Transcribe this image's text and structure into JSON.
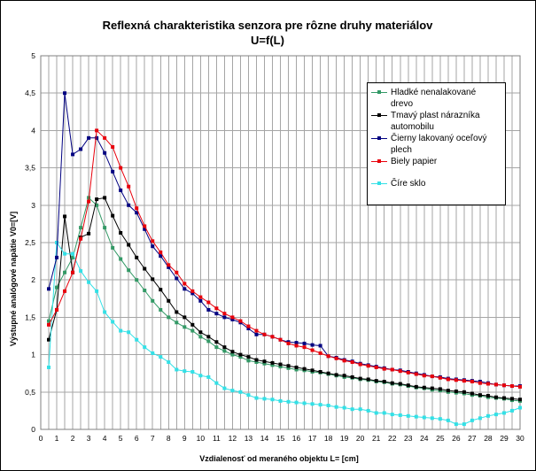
{
  "chart_data": {
    "type": "line",
    "title": "Reflexná charakteristika senzora pre rôzne druhy materiálov",
    "subtitle": "U=f(L)",
    "xlabel": "Vzdialenosť od meraného objektu L= [cm]",
    "ylabel": "Výstupné analógové napätie V0=[V]",
    "xlim": [
      0,
      30
    ],
    "ylim": [
      0,
      5
    ],
    "xticks": [
      0,
      1,
      2,
      3,
      4,
      5,
      6,
      7,
      8,
      9,
      10,
      11,
      12,
      13,
      14,
      15,
      16,
      17,
      18,
      19,
      20,
      21,
      22,
      23,
      24,
      25,
      26,
      27,
      28,
      29,
      30
    ],
    "xtick_labels": [
      "0",
      "1",
      "2",
      "3",
      "4",
      "5",
      "6",
      "7",
      "8",
      "9",
      "10",
      "11",
      "12",
      "13",
      "14",
      "15",
      "16",
      "17",
      "18",
      "19",
      "20",
      "21",
      "22",
      "23",
      "24",
      "25",
      "26",
      "27",
      "28",
      "29",
      "30"
    ],
    "yticks": [
      0,
      0.5,
      1,
      1.5,
      2,
      2.5,
      3,
      3.5,
      4,
      4.5,
      5
    ],
    "ytick_labels": [
      "0",
      "0,5",
      "1",
      "1,5",
      "2",
      "2,5",
      "3",
      "3,5",
      "4",
      "4,5",
      "5"
    ],
    "grid": true,
    "legend_position": "top-right",
    "series": [
      {
        "name": "Hladké nenalakované drevo",
        "legend_lines": [
          "Hladké nenalakované",
          "drevo"
        ],
        "color": "#339966",
        "points": [
          [
            0.5,
            1.45
          ],
          [
            1,
            1.9
          ],
          [
            1.5,
            2.1
          ],
          [
            2,
            2.3
          ],
          [
            2.5,
            2.7
          ],
          [
            3,
            3.1
          ],
          [
            3.5,
            3.0
          ],
          [
            4,
            2.7
          ],
          [
            4.5,
            2.43
          ],
          [
            5,
            2.28
          ],
          [
            5.5,
            2.13
          ],
          [
            6,
            2.0
          ],
          [
            6.5,
            1.86
          ],
          [
            7,
            1.72
          ],
          [
            7.5,
            1.6
          ],
          [
            8,
            1.5
          ],
          [
            8.5,
            1.43
          ],
          [
            9,
            1.37
          ],
          [
            9.5,
            1.32
          ],
          [
            10,
            1.24
          ],
          [
            10.5,
            1.18
          ],
          [
            11,
            1.1
          ],
          [
            11.5,
            1.05
          ],
          [
            12,
            1.0
          ],
          [
            12.5,
            0.97
          ],
          [
            13,
            0.92
          ],
          [
            13.5,
            0.9
          ],
          [
            14,
            0.88
          ],
          [
            14.5,
            0.86
          ],
          [
            15,
            0.84
          ],
          [
            15.5,
            0.82
          ],
          [
            16,
            0.8
          ],
          [
            16.5,
            0.79
          ],
          [
            17,
            0.77
          ],
          [
            17.5,
            0.76
          ],
          [
            18,
            0.74
          ],
          [
            18.5,
            0.72
          ],
          [
            19,
            0.7
          ],
          [
            19.5,
            0.69
          ],
          [
            20,
            0.67
          ],
          [
            20.5,
            0.66
          ],
          [
            21,
            0.64
          ],
          [
            21.5,
            0.63
          ],
          [
            22,
            0.61
          ],
          [
            22.5,
            0.6
          ],
          [
            23,
            0.58
          ],
          [
            23.5,
            0.56
          ],
          [
            24,
            0.55
          ],
          [
            24.5,
            0.53
          ],
          [
            25,
            0.52
          ],
          [
            25.5,
            0.5
          ],
          [
            26,
            0.49
          ],
          [
            26.5,
            0.48
          ],
          [
            27,
            0.46
          ],
          [
            27.5,
            0.45
          ],
          [
            28,
            0.43
          ],
          [
            28.5,
            0.42
          ],
          [
            29,
            0.41
          ],
          [
            29.5,
            0.39
          ],
          [
            30,
            0.38
          ]
        ]
      },
      {
        "name": "Tmavý plast nárazníka automobilu",
        "legend_lines": [
          "Tmavý plast nárazníka",
          "automobilu"
        ],
        "color": "#000000",
        "points": [
          [
            0.5,
            1.2
          ],
          [
            1,
            1.6
          ],
          [
            1.5,
            2.85
          ],
          [
            2,
            2.1
          ],
          [
            2.5,
            2.57
          ],
          [
            3,
            2.62
          ],
          [
            3.5,
            3.08
          ],
          [
            4,
            3.1
          ],
          [
            4.5,
            2.86
          ],
          [
            5,
            2.63
          ],
          [
            5.5,
            2.47
          ],
          [
            6,
            2.3
          ],
          [
            6.5,
            2.15
          ],
          [
            7,
            2.01
          ],
          [
            7.5,
            1.87
          ],
          [
            8,
            1.72
          ],
          [
            8.5,
            1.57
          ],
          [
            9,
            1.5
          ],
          [
            9.5,
            1.4
          ],
          [
            10,
            1.3
          ],
          [
            10.5,
            1.24
          ],
          [
            11,
            1.17
          ],
          [
            11.5,
            1.1
          ],
          [
            12,
            1.04
          ],
          [
            12.5,
            1.0
          ],
          [
            13,
            0.97
          ],
          [
            13.5,
            0.93
          ],
          [
            14,
            0.91
          ],
          [
            14.5,
            0.89
          ],
          [
            15,
            0.87
          ],
          [
            15.5,
            0.85
          ],
          [
            16,
            0.83
          ],
          [
            16.5,
            0.81
          ],
          [
            17,
            0.79
          ],
          [
            17.5,
            0.77
          ],
          [
            18,
            0.75
          ],
          [
            18.5,
            0.73
          ],
          [
            19,
            0.72
          ],
          [
            19.5,
            0.7
          ],
          [
            20,
            0.68
          ],
          [
            20.5,
            0.67
          ],
          [
            21,
            0.65
          ],
          [
            21.5,
            0.64
          ],
          [
            22,
            0.62
          ],
          [
            22.5,
            0.61
          ],
          [
            23,
            0.59
          ],
          [
            23.5,
            0.57
          ],
          [
            24,
            0.56
          ],
          [
            24.5,
            0.55
          ],
          [
            25,
            0.54
          ],
          [
            25.5,
            0.52
          ],
          [
            26,
            0.51
          ],
          [
            26.5,
            0.5
          ],
          [
            27,
            0.48
          ],
          [
            27.5,
            0.46
          ],
          [
            28,
            0.45
          ],
          [
            28.5,
            0.43
          ],
          [
            29,
            0.42
          ],
          [
            29.5,
            0.41
          ],
          [
            30,
            0.4
          ]
        ]
      },
      {
        "name": "Čierny lakovaný oceľový plech",
        "legend_lines": [
          "Čierny lakovaný oceľový",
          "plech"
        ],
        "color": "#000080",
        "points": [
          [
            0.5,
            1.88
          ],
          [
            1,
            2.3
          ],
          [
            1.5,
            4.5
          ],
          [
            2,
            3.68
          ],
          [
            2.5,
            3.75
          ],
          [
            3,
            3.9
          ],
          [
            3.5,
            3.9
          ],
          [
            4,
            3.7
          ],
          [
            4.5,
            3.45
          ],
          [
            5,
            3.2
          ],
          [
            5.5,
            3.0
          ],
          [
            6,
            2.9
          ],
          [
            6.5,
            2.68
          ],
          [
            7,
            2.45
          ],
          [
            7.5,
            2.32
          ],
          [
            8,
            2.17
          ],
          [
            8.5,
            2.02
          ],
          [
            9,
            1.88
          ],
          [
            9.5,
            1.82
          ],
          [
            10,
            1.72
          ],
          [
            10.5,
            1.6
          ],
          [
            11,
            1.55
          ],
          [
            11.5,
            1.5
          ],
          [
            12,
            1.47
          ],
          [
            12.5,
            1.43
          ],
          [
            13,
            1.35
          ],
          [
            13.5,
            1.27
          ],
          [
            14,
            1.27
          ],
          [
            14.5,
            1.24
          ],
          [
            15,
            1.2
          ],
          [
            15.5,
            1.17
          ],
          [
            16,
            1.16
          ],
          [
            16.5,
            1.15
          ],
          [
            17,
            1.13
          ],
          [
            17.5,
            1.12
          ],
          [
            18,
            0.98
          ],
          [
            18.5,
            0.96
          ],
          [
            19,
            0.93
          ],
          [
            19.5,
            0.91
          ],
          [
            20,
            0.88
          ],
          [
            20.5,
            0.86
          ],
          [
            21,
            0.84
          ],
          [
            21.5,
            0.82
          ],
          [
            22,
            0.8
          ],
          [
            22.5,
            0.79
          ],
          [
            23,
            0.77
          ],
          [
            23.5,
            0.75
          ],
          [
            24,
            0.73
          ],
          [
            24.5,
            0.71
          ],
          [
            25,
            0.7
          ],
          [
            25.5,
            0.68
          ],
          [
            26,
            0.67
          ],
          [
            26.5,
            0.66
          ],
          [
            27,
            0.65
          ],
          [
            27.5,
            0.64
          ],
          [
            28,
            0.62
          ],
          [
            28.5,
            0.6
          ],
          [
            29,
            0.59
          ],
          [
            29.5,
            0.58
          ],
          [
            30,
            0.58
          ]
        ]
      },
      {
        "name": "Biely papier",
        "legend_lines": [
          "Biely papier"
        ],
        "color": "#e8000b",
        "points": [
          [
            0.5,
            1.4
          ],
          [
            1,
            1.6
          ],
          [
            1.5,
            1.85
          ],
          [
            2,
            2.1
          ],
          [
            2.5,
            2.55
          ],
          [
            3,
            3.05
          ],
          [
            3.5,
            4.0
          ],
          [
            4,
            3.9
          ],
          [
            4.5,
            3.78
          ],
          [
            5,
            3.5
          ],
          [
            5.5,
            3.25
          ],
          [
            6,
            2.96
          ],
          [
            6.5,
            2.72
          ],
          [
            7,
            2.52
          ],
          [
            7.5,
            2.37
          ],
          [
            8,
            2.2
          ],
          [
            8.5,
            2.1
          ],
          [
            9,
            1.95
          ],
          [
            9.5,
            1.85
          ],
          [
            10,
            1.77
          ],
          [
            10.5,
            1.7
          ],
          [
            11,
            1.62
          ],
          [
            11.5,
            1.55
          ],
          [
            12,
            1.5
          ],
          [
            12.5,
            1.45
          ],
          [
            13,
            1.38
          ],
          [
            13.5,
            1.32
          ],
          [
            14,
            1.27
          ],
          [
            14.5,
            1.24
          ],
          [
            15,
            1.2
          ],
          [
            15.5,
            1.15
          ],
          [
            16,
            1.12
          ],
          [
            16.5,
            1.1
          ],
          [
            17,
            1.06
          ],
          [
            17.5,
            1.02
          ],
          [
            18,
            0.98
          ],
          [
            18.5,
            0.95
          ],
          [
            19,
            0.92
          ],
          [
            19.5,
            0.9
          ],
          [
            20,
            0.87
          ],
          [
            20.5,
            0.85
          ],
          [
            21,
            0.83
          ],
          [
            21.5,
            0.81
          ],
          [
            22,
            0.8
          ],
          [
            22.5,
            0.78
          ],
          [
            23,
            0.76
          ],
          [
            23.5,
            0.74
          ],
          [
            24,
            0.72
          ],
          [
            24.5,
            0.71
          ],
          [
            25,
            0.69
          ],
          [
            25.5,
            0.67
          ],
          [
            26,
            0.66
          ],
          [
            26.5,
            0.65
          ],
          [
            27,
            0.64
          ],
          [
            27.5,
            0.62
          ],
          [
            28,
            0.61
          ],
          [
            28.5,
            0.6
          ],
          [
            29,
            0.59
          ],
          [
            29.5,
            0.58
          ],
          [
            30,
            0.57
          ]
        ]
      },
      {
        "name": "Číre sklo",
        "legend_lines": [
          "Číre sklo"
        ],
        "color": "#33e0e6",
        "points": [
          [
            0.5,
            0.83
          ],
          [
            1,
            2.5
          ],
          [
            1.5,
            2.35
          ],
          [
            2,
            2.35
          ],
          [
            2.5,
            2.12
          ],
          [
            3,
            1.97
          ],
          [
            3.5,
            1.85
          ],
          [
            4,
            1.57
          ],
          [
            4.5,
            1.44
          ],
          [
            5,
            1.32
          ],
          [
            5.5,
            1.3
          ],
          [
            6,
            1.2
          ],
          [
            6.5,
            1.1
          ],
          [
            7,
            1.02
          ],
          [
            7.5,
            0.97
          ],
          [
            8,
            0.9
          ],
          [
            8.5,
            0.8
          ],
          [
            9,
            0.78
          ],
          [
            9.5,
            0.77
          ],
          [
            10,
            0.72
          ],
          [
            10.5,
            0.7
          ],
          [
            11,
            0.62
          ],
          [
            11.5,
            0.55
          ],
          [
            12,
            0.52
          ],
          [
            12.5,
            0.5
          ],
          [
            13,
            0.46
          ],
          [
            13.5,
            0.42
          ],
          [
            14,
            0.41
          ],
          [
            14.5,
            0.4
          ],
          [
            15,
            0.38
          ],
          [
            15.5,
            0.37
          ],
          [
            16,
            0.36
          ],
          [
            16.5,
            0.35
          ],
          [
            17,
            0.34
          ],
          [
            17.5,
            0.33
          ],
          [
            18,
            0.32
          ],
          [
            18.5,
            0.3
          ],
          [
            19,
            0.29
          ],
          [
            19.5,
            0.27
          ],
          [
            20,
            0.27
          ],
          [
            20.5,
            0.25
          ],
          [
            21,
            0.22
          ],
          [
            21.5,
            0.22
          ],
          [
            22,
            0.2
          ],
          [
            22.5,
            0.19
          ],
          [
            23,
            0.18
          ],
          [
            23.5,
            0.17
          ],
          [
            24,
            0.16
          ],
          [
            24.5,
            0.15
          ],
          [
            25,
            0.14
          ],
          [
            25.5,
            0.12
          ],
          [
            26,
            0.07
          ],
          [
            26.5,
            0.07
          ],
          [
            27,
            0.12
          ],
          [
            27.5,
            0.15
          ],
          [
            28,
            0.18
          ],
          [
            28.5,
            0.2
          ],
          [
            29,
            0.22
          ],
          [
            29.5,
            0.25
          ],
          [
            30,
            0.29
          ]
        ]
      }
    ]
  }
}
